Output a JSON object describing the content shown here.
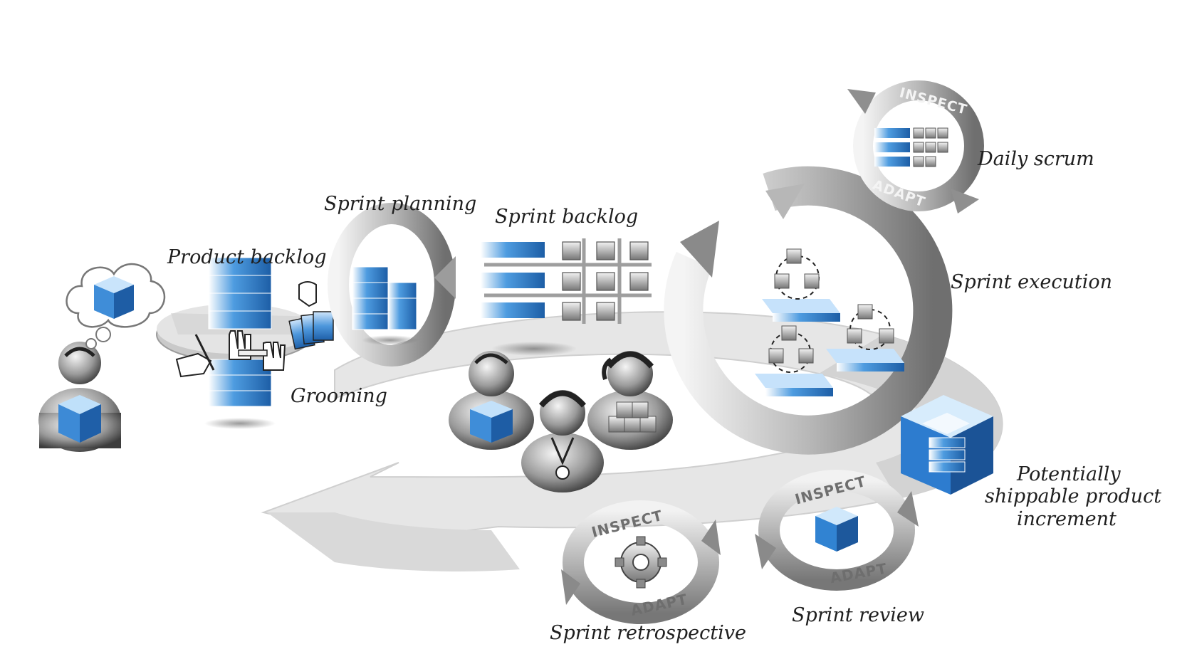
{
  "labels": {
    "product_backlog": "Product backlog",
    "sprint_planning": "Sprint planning",
    "sprint_backlog": "Sprint backlog",
    "daily_scrum": "Daily scrum",
    "sprint_execution": "Sprint execution",
    "grooming": "Grooming",
    "potentially_line1": "Potentially",
    "potentially_line2": "shippable product",
    "potentially_line3": "increment",
    "sprint_review": "Sprint review",
    "sprint_retrospective": "Sprint retrospective"
  },
  "cycle_text": {
    "daily_inspect": "INSPECT",
    "daily_adapt": "ADAPT",
    "review_inspect": "INSPECT",
    "review_adapt": "ADAPT",
    "retro_inspect": "INSPECT",
    "retro_adapt": "ADAPT"
  },
  "colors": {
    "accent_blue": "#2f7fd1",
    "accent_light": "#a9d1f5",
    "gray_dark": "#5e5e5e",
    "gray_mid": "#a8a8a8",
    "gray_light": "#e2e2e2"
  }
}
